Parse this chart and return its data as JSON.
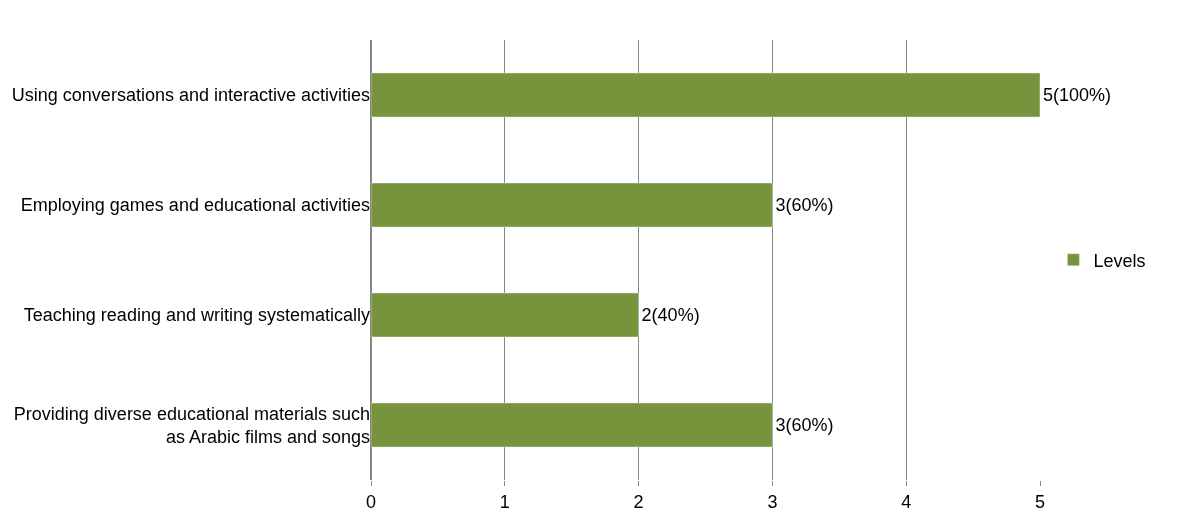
{
  "chart_data": {
    "type": "bar",
    "orientation": "horizontal",
    "categories": [
      "Using conversations and interactive activities",
      "Employing games and educational activities",
      "Teaching reading and writing systematically",
      "Providing diverse educational materials such as Arabic films and songs"
    ],
    "series": [
      {
        "name": "Levels",
        "color": "#77933c",
        "values": [
          5,
          3,
          2,
          3
        ],
        "value_labels": [
          "5(100%)",
          "3(60%)",
          "2(40%)",
          "3(60%)"
        ]
      }
    ],
    "xlim": [
      0,
      5
    ],
    "xticks": [
      0,
      1,
      2,
      3,
      4,
      5
    ],
    "grid": "x",
    "legend": "right"
  }
}
